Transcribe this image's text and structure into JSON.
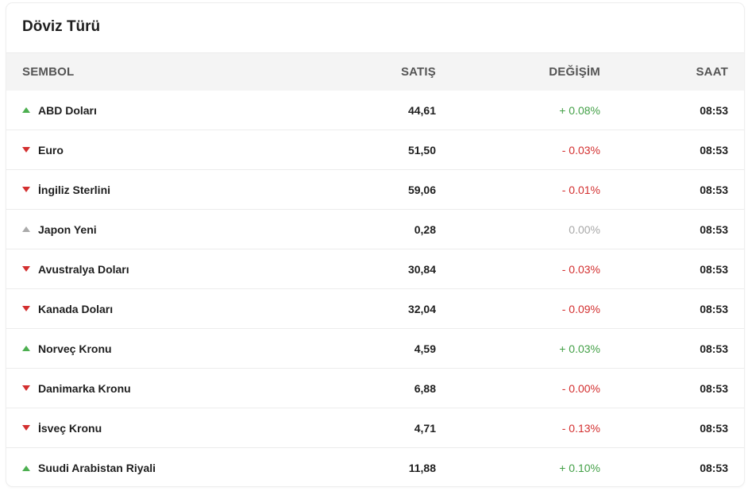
{
  "title": "Döviz Türü",
  "columns": {
    "symbol": "SEMBOL",
    "sell": "SATIŞ",
    "change": "DEĞİŞİM",
    "time": "SAAT"
  },
  "colors": {
    "up": "#43a047",
    "down": "#d32f2f",
    "neutral": "#a8a8a8"
  },
  "rows": [
    {
      "name": "ABD Doları",
      "sell": "44,61",
      "change": "+ 0.08%",
      "time": "08:53",
      "trend": "up"
    },
    {
      "name": "Euro",
      "sell": "51,50",
      "change": "- 0.03%",
      "time": "08:53",
      "trend": "down"
    },
    {
      "name": "İngiliz Sterlini",
      "sell": "59,06",
      "change": "- 0.01%",
      "time": "08:53",
      "trend": "down"
    },
    {
      "name": "Japon Yeni",
      "sell": "0,28",
      "change": "0.00%",
      "time": "08:53",
      "trend": "neutral"
    },
    {
      "name": "Avustralya Doları",
      "sell": "30,84",
      "change": "- 0.03%",
      "time": "08:53",
      "trend": "down"
    },
    {
      "name": "Kanada Doları",
      "sell": "32,04",
      "change": "- 0.09%",
      "time": "08:53",
      "trend": "down"
    },
    {
      "name": "Norveç Kronu",
      "sell": "4,59",
      "change": "+ 0.03%",
      "time": "08:53",
      "trend": "up"
    },
    {
      "name": "Danimarka Kronu",
      "sell": "6,88",
      "change": "- 0.00%",
      "time": "08:53",
      "trend": "down"
    },
    {
      "name": "İsveç Kronu",
      "sell": "4,71",
      "change": "- 0.13%",
      "time": "08:53",
      "trend": "down"
    },
    {
      "name": "Suudi Arabistan Riyali",
      "sell": "11,88",
      "change": "+ 0.10%",
      "time": "08:53",
      "trend": "up"
    }
  ]
}
